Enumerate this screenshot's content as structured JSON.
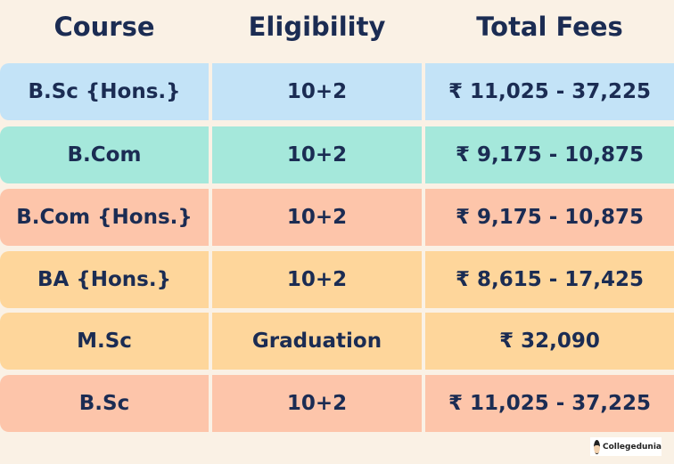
{
  "headers": [
    "Course",
    "Eligibility",
    "Total Fees"
  ],
  "rows": [
    {
      "course": "B.Sc {Hons.}",
      "eligibility": "10+2",
      "fees": "₹ 11,025 - 37,225",
      "color": "#c3e3f7"
    },
    {
      "course": "B.Com",
      "eligibility": "10+2",
      "fees": "₹ 9,175 - 10,875",
      "color": "#a5e8db"
    },
    {
      "course": "B.Com {Hons.}",
      "eligibility": "10+2",
      "fees": "₹ 9,175 - 10,875",
      "color": "#fdc5aa"
    },
    {
      "course": "BA {Hons.}",
      "eligibility": "10+2",
      "fees": "₹ 8,615 - 17,425",
      "color": "#fed69b"
    },
    {
      "course": "M.Sc",
      "eligibility": "Graduation",
      "fees": "₹ 32,090",
      "color": "#fed69b"
    },
    {
      "course": "B.Sc",
      "eligibility": "10+2",
      "fees": "₹ 11,025 - 37,225",
      "color": "#fdc5aa"
    }
  ],
  "logo": {
    "text": "Collegedunia"
  }
}
